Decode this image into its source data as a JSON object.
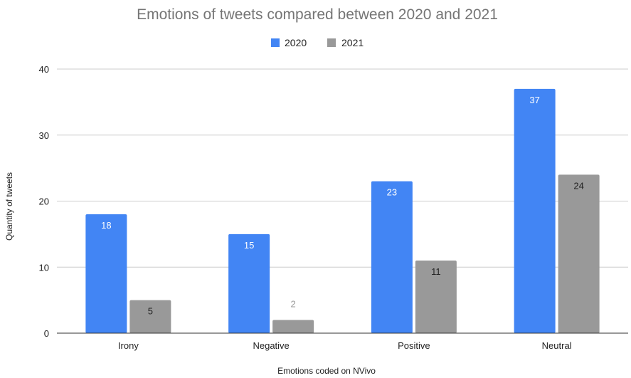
{
  "chart_data": {
    "type": "bar",
    "title": "Emotions of tweets compared between 2020 and 2021",
    "xlabel": "Emotions coded on NVivo",
    "ylabel": "Quantity of tweets",
    "categories": [
      "Irony",
      "Negative",
      "Positive",
      "Neutral"
    ],
    "series": [
      {
        "name": "2020",
        "color": "#4285f4",
        "values": [
          18,
          15,
          23,
          37
        ]
      },
      {
        "name": "2021",
        "color": "#999999",
        "values": [
          5,
          2,
          11,
          24
        ]
      }
    ],
    "ylim": [
      0,
      40
    ],
    "yticks": [
      "0",
      "10",
      "20",
      "30",
      "40"
    ],
    "grid": true,
    "legend": "top"
  }
}
